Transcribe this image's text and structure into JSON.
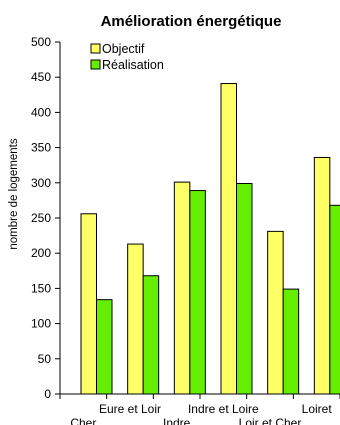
{
  "chart_data": {
    "type": "bar",
    "title": "Amélioration énergétique",
    "xlabel": "",
    "ylabel": "nombre de logements",
    "ylim": [
      0,
      500
    ],
    "yticks": [
      0,
      50,
      100,
      150,
      200,
      250,
      300,
      350,
      400,
      450,
      500
    ],
    "categories": [
      [
        "Cher"
      ],
      [
        "Eure et Loir"
      ],
      [
        "Indre"
      ],
      [
        "Indre et Loire"
      ],
      [
        "Loir et Cher"
      ],
      [
        "Loiret"
      ]
    ],
    "category_labels_print": [
      {
        "line1": "",
        "line2": "Cher"
      },
      {
        "line1": "Eure et Loir",
        "line2": ""
      },
      {
        "line1": "",
        "line2": "Indre"
      },
      {
        "line1": "Indre et Loire",
        "line2": ""
      },
      {
        "line1": "",
        "line2": "Loir et Cher"
      },
      {
        "line1": "Loiret",
        "line2": ""
      }
    ],
    "series": [
      {
        "name": "Objectif",
        "color": "#ffff66",
        "values": [
          256,
          213,
          301,
          441,
          231,
          336
        ]
      },
      {
        "name": "Réalisation",
        "color": "#66ee00",
        "values": [
          134,
          168,
          289,
          299,
          149,
          268
        ]
      }
    ],
    "legend_position": "top-left",
    "grid": false
  }
}
